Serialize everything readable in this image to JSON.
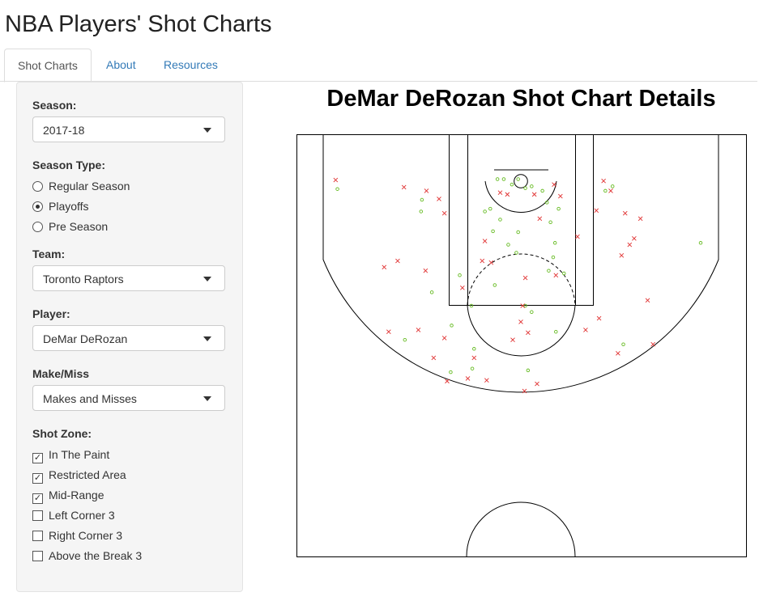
{
  "app_title": "NBA Players' Shot Charts",
  "tabs": {
    "items": [
      "Shot Charts",
      "About",
      "Resources"
    ],
    "active": 0
  },
  "sidebar": {
    "season": {
      "label": "Season:",
      "value": "2017-18"
    },
    "season_type": {
      "label": "Season Type:",
      "options": [
        "Regular Season",
        "Playoffs",
        "Pre Season"
      ],
      "selected": 1
    },
    "team": {
      "label": "Team:",
      "value": "Toronto Raptors"
    },
    "player": {
      "label": "Player:",
      "value": "DeMar DeRozan"
    },
    "make_miss": {
      "label": "Make/Miss",
      "value": "Makes and Misses"
    },
    "shot_zone": {
      "label": "Shot Zone:",
      "options": [
        "In The Paint",
        "Restricted Area",
        "Mid-Range",
        "Left Corner 3",
        "Right Corner 3",
        "Above the Break 3"
      ],
      "checked": [
        true,
        true,
        true,
        false,
        false,
        false
      ]
    }
  },
  "shot_chart": {
    "title": "DeMar DeRozan Shot Chart Details",
    "makes": {
      "color": "#66bb22",
      "x": [
        -20.4,
        -11,
        -11.1,
        -12.9,
        -9.9,
        -6.8,
        -5.5,
        -2.9,
        -4,
        -3.4,
        -3.1,
        -2.6,
        -0.3,
        0.5,
        1.2,
        2.4,
        2.9,
        4.2,
        3.3,
        3.8,
        3.6,
        3.1,
        4.8,
        -0.3,
        -1.4,
        -0.5,
        -2.3,
        0.5,
        1.2,
        3.9,
        -7.7,
        -5.2,
        -7.8,
        -5.4,
        0.8,
        20,
        11.4,
        9.4,
        10.2,
        -1.9,
        -1
      ],
      "y": [
        6.1,
        7.3,
        8.6,
        22.9,
        17.6,
        15.7,
        19.1,
        16.8,
        8.6,
        8.3,
        10.8,
        5,
        5,
        6,
        5.8,
        6.3,
        7.6,
        8.3,
        9.8,
        12.1,
        13.7,
        15.2,
        15.5,
        10.9,
        12.3,
        13.2,
        9.5,
        19.1,
        19.8,
        22,
        21.3,
        23.9,
        26.5,
        26.1,
        26.3,
        12.1,
        23.4,
        6.3,
        5.8,
        5,
        5.6
      ]
    },
    "misses": {
      "color": "#e03030",
      "x": [
        -20.6,
        -13,
        -10.5,
        -9.1,
        -8.5,
        -15.2,
        -13.7,
        -10.6,
        -6.5,
        -4,
        -4.3,
        -2.3,
        -1.5,
        1.5,
        3.7,
        4.4,
        2.1,
        6.3,
        8.4,
        9.2,
        10,
        11.6,
        13.3,
        12.6,
        12.1,
        11.2,
        14.1,
        8.7,
        7.2,
        14.7,
        10.8,
        3.9,
        0.5,
        0.2,
        0,
        0.8,
        -0.9,
        -14.7,
        -11.4,
        -8.5,
        -9.7,
        -5.2,
        -5.9,
        -8.2,
        -3.8,
        1.8,
        0.4,
        -3.3
      ],
      "y": [
        5.1,
        5.9,
        6.3,
        7.2,
        8.8,
        14.8,
        14.1,
        15.2,
        17.1,
        11.9,
        14.1,
        6.5,
        6.7,
        6.7,
        5.6,
        6.9,
        9.4,
        11.4,
        8.5,
        5.2,
        6.3,
        8.8,
        9.4,
        11.6,
        12.3,
        13.5,
        18.5,
        20.5,
        21.8,
        23.4,
        24.4,
        15.7,
        16,
        19.1,
        20.9,
        22.1,
        22.9,
        22,
        21.8,
        22.7,
        24.9,
        24.9,
        27.2,
        27.5,
        27.4,
        27.8,
        28.6,
        14.3
      ]
    }
  }
}
